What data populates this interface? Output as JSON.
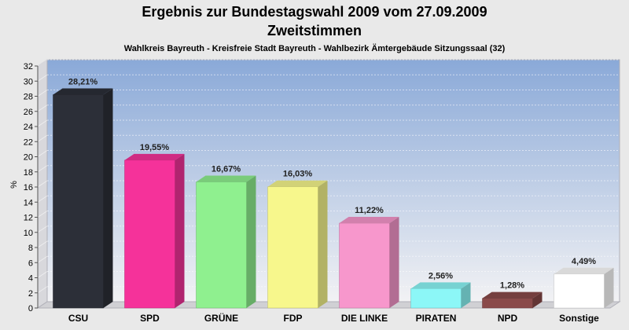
{
  "chart_data": {
    "type": "bar",
    "title": "Ergebnis zur Bundestagswahl 2009 vom 27.09.2009",
    "subtitle": "Zweitstimmen",
    "caption": "Wahlkreis Bayreuth - Kreisfreie Stadt Bayreuth - Wahlbezirk Ämtergebäude Sitzungssaal (32)",
    "ylabel": "%",
    "xlabel": "",
    "ylim": [
      0,
      32
    ],
    "yticks": [
      0,
      2,
      4,
      6,
      8,
      10,
      12,
      14,
      16,
      18,
      20,
      22,
      24,
      26,
      28,
      30,
      32
    ],
    "grid": true,
    "categories": [
      "CSU",
      "SPD",
      "GRÜNE",
      "FDP",
      "DIE LINKE",
      "PIRATEN",
      "NPD",
      "Sonstige"
    ],
    "values": [
      28.21,
      19.55,
      16.67,
      16.03,
      11.22,
      2.56,
      1.28,
      4.49
    ],
    "value_labels": [
      "28,21%",
      "19,55%",
      "16,67%",
      "16,03%",
      "11,22%",
      "2,56%",
      "1,28%",
      "4,49%"
    ],
    "colors": [
      "#2c2f38",
      "#f5329a",
      "#8ff08f",
      "#f7f78c",
      "#f797cc",
      "#8cf7f7",
      "#8a4a4a",
      "#ffffff"
    ],
    "plot_background": "#9ab4dc"
  }
}
